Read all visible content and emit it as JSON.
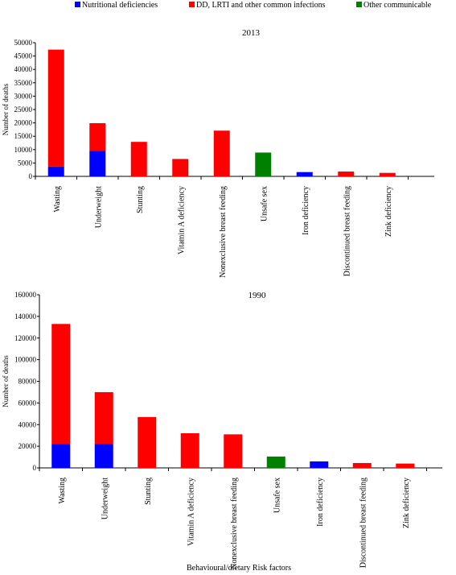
{
  "legend": [
    {
      "name": "Nutritional deficiencies",
      "color": "#0000ff"
    },
    {
      "name": "DD, LRTI and other common infections",
      "color": "#ff0000"
    },
    {
      "name": "Other communicable",
      "color": "#008000"
    }
  ],
  "chart_data": [
    {
      "type": "bar",
      "stacked": true,
      "title": "2013",
      "ylabel": "Number of deaths",
      "xlabel": "",
      "ylim": [
        0,
        50000
      ],
      "yticks": [
        0,
        5000,
        10000,
        15000,
        20000,
        25000,
        30000,
        35000,
        40000,
        45000,
        50000
      ],
      "categories": [
        "Wasting",
        "Underweight",
        "Stunting",
        "Vitamin A deficiency",
        "Nonexclusive breast feeding",
        "Unsafe sex",
        "Iron deficiency",
        "Discontinued breast feeding",
        "Zink deficiency"
      ],
      "series": [
        {
          "name": "Nutritional deficiencies",
          "values": [
            3700,
            9600,
            0,
            0,
            0,
            0,
            1600,
            0,
            0
          ]
        },
        {
          "name": "DD, LRTI and other common infections",
          "values": [
            43700,
            10300,
            12900,
            6500,
            17100,
            0,
            0,
            1800,
            1300
          ]
        },
        {
          "name": "Other communicable",
          "values": [
            0,
            0,
            0,
            0,
            0,
            8900,
            0,
            0,
            0
          ]
        }
      ]
    },
    {
      "type": "bar",
      "stacked": true,
      "title": "1990",
      "ylabel": "Number of deaths",
      "xlabel": "Behavioural/dietary  Risk factors",
      "ylim": [
        0,
        160000
      ],
      "yticks": [
        0,
        20000,
        40000,
        60000,
        80000,
        100000,
        120000,
        140000,
        160000
      ],
      "categories": [
        "Wasting",
        "Underweight",
        "Stunting",
        "Vitamin A deficiency",
        "Nonexclusive breast feeding",
        "Unsafe sex",
        "Iron deficiency",
        "Discontinued breast feeding",
        "Zink deficiency"
      ],
      "series": [
        {
          "name": "Nutritional deficiencies",
          "values": [
            22000,
            22000,
            0,
            0,
            0,
            0,
            6000,
            0,
            0
          ]
        },
        {
          "name": "DD, LRTI and other common infections",
          "values": [
            111000,
            48000,
            47000,
            32000,
            31000,
            0,
            0,
            4500,
            4000
          ]
        },
        {
          "name": "Other communicable",
          "values": [
            0,
            0,
            0,
            0,
            0,
            10500,
            0,
            0,
            0
          ]
        }
      ]
    }
  ]
}
